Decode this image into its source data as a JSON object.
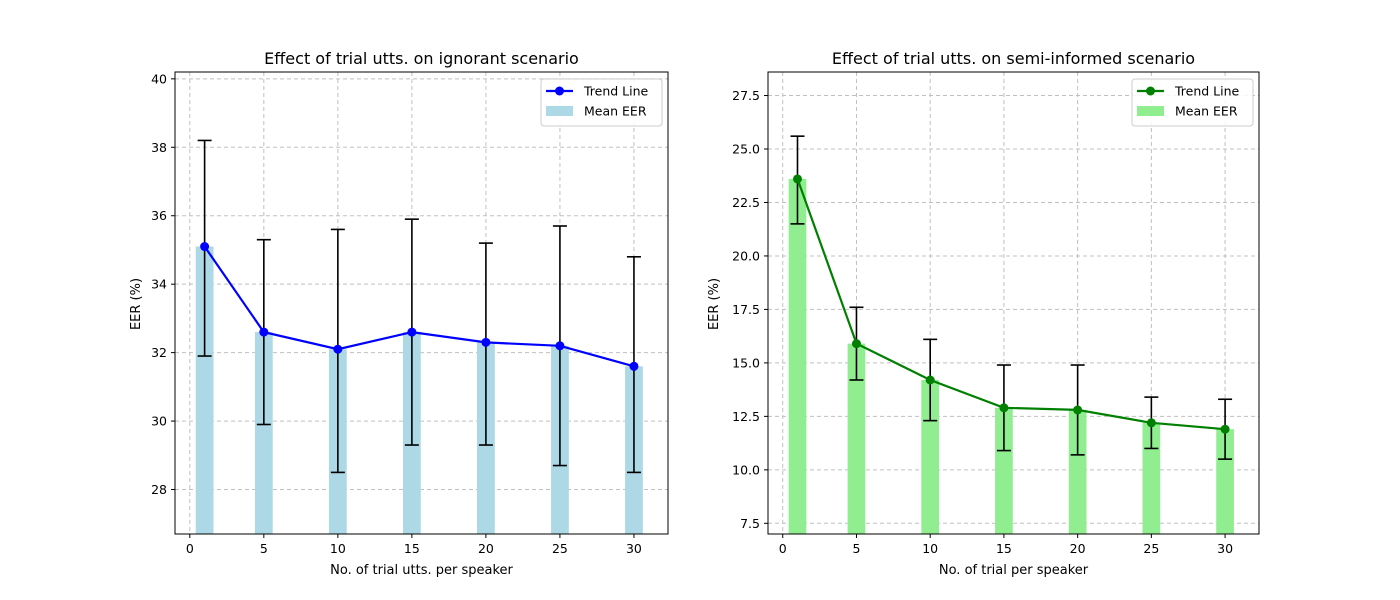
{
  "chart_data": [
    {
      "type": "bar",
      "title": "Effect of trial utts. on ignorant scenario",
      "xlabel": "No. of trial utts. per speaker",
      "ylabel": "EER (%)",
      "x": [
        1,
        5,
        10,
        15,
        20,
        25,
        30
      ],
      "xlim": [
        -1,
        32.3
      ],
      "ylim": [
        26.7,
        40.2
      ],
      "xticks": [
        0,
        5,
        10,
        15,
        20,
        25,
        30
      ],
      "yticks": [
        28,
        30,
        32,
        34,
        36,
        38,
        40
      ],
      "grid": true,
      "legend_position": "top-right",
      "series": [
        {
          "name": "Mean EER",
          "kind": "bar",
          "values": [
            35.1,
            32.6,
            32.1,
            32.6,
            32.3,
            32.2,
            31.6
          ],
          "color": "#add8e6"
        },
        {
          "name": "Trend Line",
          "kind": "line",
          "values": [
            35.1,
            32.6,
            32.1,
            32.6,
            32.3,
            32.2,
            31.6
          ],
          "color": "#0000ff"
        }
      ],
      "errorbars": {
        "lower": [
          31.9,
          29.9,
          28.5,
          29.3,
          29.3,
          28.7,
          28.5
        ],
        "upper": [
          38.2,
          35.3,
          35.6,
          35.9,
          35.2,
          35.7,
          34.8
        ],
        "color": "#000000"
      }
    },
    {
      "type": "bar",
      "title": "Effect of trial utts. on semi-informed scenario",
      "xlabel": "No. of trial per speaker",
      "ylabel": "EER (%)",
      "x": [
        1,
        5,
        10,
        15,
        20,
        25,
        30
      ],
      "xlim": [
        -1,
        32.3
      ],
      "ylim": [
        7.0,
        28.6
      ],
      "xticks": [
        0,
        5,
        10,
        15,
        20,
        25,
        30
      ],
      "yticks": [
        7.5,
        10.0,
        12.5,
        15.0,
        17.5,
        20.0,
        22.5,
        25.0,
        27.5
      ],
      "ytick_labels": [
        "7.5",
        "10.0",
        "12.5",
        "15.0",
        "17.5",
        "20.0",
        "22.5",
        "25.0",
        "27.5"
      ],
      "grid": true,
      "legend_position": "top-right",
      "series": [
        {
          "name": "Mean EER",
          "kind": "bar",
          "values": [
            23.6,
            15.9,
            14.2,
            12.9,
            12.8,
            12.2,
            11.9
          ],
          "color": "#90ee90"
        },
        {
          "name": "Trend Line",
          "kind": "line",
          "values": [
            23.6,
            15.9,
            14.2,
            12.9,
            12.8,
            12.2,
            11.9
          ],
          "color": "#008000"
        }
      ],
      "errorbars": {
        "lower": [
          21.5,
          14.2,
          12.3,
          10.9,
          10.7,
          11.0,
          10.5
        ],
        "upper": [
          25.6,
          17.6,
          16.1,
          14.9,
          14.9,
          13.4,
          13.3
        ],
        "color": "#000000"
      }
    }
  ]
}
